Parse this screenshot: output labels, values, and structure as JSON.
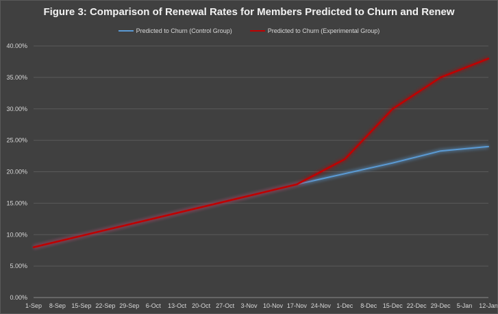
{
  "chart_data": {
    "type": "line",
    "title": "Figure 3: Comparison of Renewal Rates for Members Predicted to Churn and Renew",
    "xlabel": "",
    "ylabel": "",
    "categories": [
      "1-Sep",
      "8-Sep",
      "15-Sep",
      "22-Sep",
      "29-Sep",
      "6-Oct",
      "13-Oct",
      "20-Oct",
      "27-Oct",
      "3-Nov",
      "10-Nov",
      "17-Nov",
      "24-Nov",
      "1-Dec",
      "8-Dec",
      "15-Dec",
      "22-Dec",
      "29-Dec",
      "5-Jan",
      "12-Jan"
    ],
    "yticks": [
      "0.00%",
      "5.00%",
      "10.00%",
      "15.00%",
      "20.00%",
      "25.00%",
      "30.00%",
      "35.00%",
      "40.00%"
    ],
    "ylim": [
      0,
      40
    ],
    "grid": true,
    "legend_position": "top",
    "series": [
      {
        "name": "Predicted to Churn (Control Group)",
        "color": "#5b9bd5",
        "points": [
          [
            0,
            8.0
          ],
          [
            11,
            18.0
          ],
          [
            13,
            19.7
          ],
          [
            15,
            21.4
          ],
          [
            17,
            23.3
          ],
          [
            19,
            24.0
          ]
        ]
      },
      {
        "name": "Predicted to Churn (Experimental Group)",
        "color": "#c00000",
        "points": [
          [
            0,
            8.0
          ],
          [
            11,
            18.0
          ],
          [
            13,
            22.0
          ],
          [
            15,
            30.0
          ],
          [
            17,
            35.0
          ],
          [
            19,
            38.0
          ]
        ]
      }
    ]
  }
}
